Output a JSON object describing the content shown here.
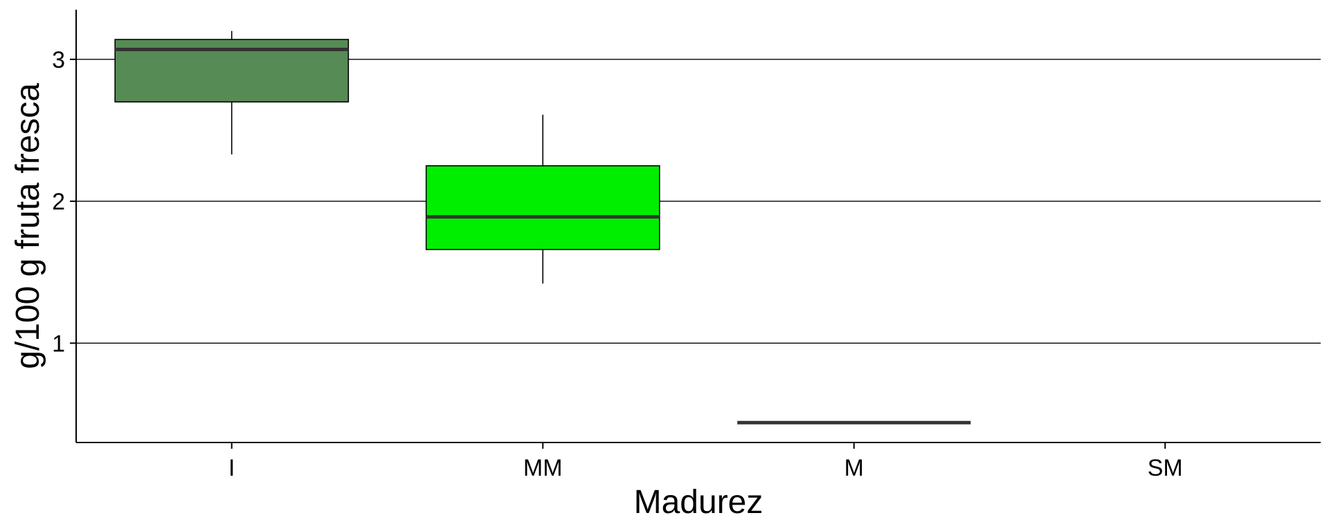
{
  "chart_data": {
    "type": "box",
    "title": "",
    "xlabel": "Madurez",
    "ylabel": "g/100 g fruta fresca",
    "categories": [
      "I",
      "MM",
      "M",
      "SM"
    ],
    "ylim": [
      0.3,
      3.35
    ],
    "yticks": [
      1,
      2,
      3
    ],
    "ytick_labels": [
      "1",
      "2",
      "3"
    ],
    "grid": "horizontal major",
    "legend": "none",
    "boxes": [
      {
        "category": "I",
        "whisker_low": 2.33,
        "q1": 2.7,
        "median": 3.07,
        "q3": 3.14,
        "whisker_high": 3.2,
        "color": "#568b55"
      },
      {
        "category": "MM",
        "whisker_low": 1.42,
        "q1": 1.66,
        "median": 1.89,
        "q3": 2.25,
        "whisker_high": 2.61,
        "color": "#00ee00"
      },
      {
        "category": "M",
        "whisker_low": 0.44,
        "q1": 0.44,
        "median": 0.44,
        "q3": 0.44,
        "whisker_high": 0.44,
        "color": "#00aa00"
      }
    ],
    "median_color": "#333333",
    "grid_color": "#000000"
  }
}
